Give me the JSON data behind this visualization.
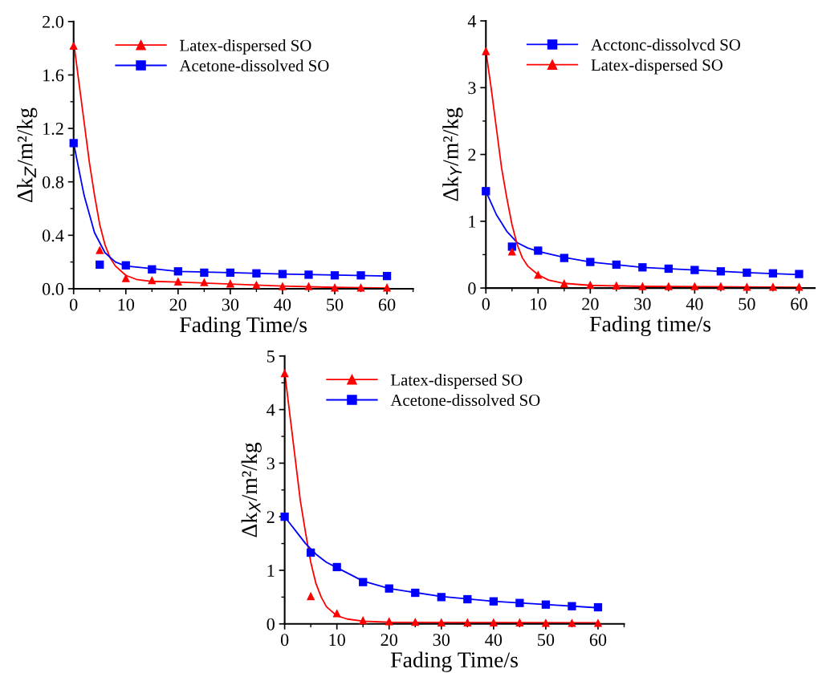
{
  "chart_data": [
    {
      "type": "scatter",
      "xlabel": "Fading Time/s",
      "ylabel": "Δk$_{Z}$/m²/kg",
      "xlim": [
        0,
        65
      ],
      "ylim": [
        0,
        2.0
      ],
      "xticks": [
        0,
        10,
        20,
        30,
        40,
        50,
        60
      ],
      "yticks": [
        {
          "value": 0,
          "label": "0.0"
        },
        0.4,
        0.8,
        1.2,
        1.6,
        {
          "value": 2,
          "label": "2.0"
        }
      ],
      "legend": "top left",
      "grid": false,
      "series": [
        {
          "name": "Latex-dispersed SO",
          "color": "#ff0000",
          "marker": "triangle",
          "x": [
            0,
            5,
            10,
            15,
            20,
            25,
            30,
            35,
            40,
            45,
            50,
            55,
            60
          ],
          "values": [
            1.82,
            0.29,
            0.08,
            0.065,
            0.055,
            0.05,
            0.04,
            0.03,
            0.02,
            0.02,
            0.01,
            0.01,
            0.01
          ]
        },
        {
          "name": "Acetone-dissolved SO",
          "color": "#0000ff",
          "marker": "square",
          "x": [
            0,
            5,
            10,
            15,
            20,
            25,
            30,
            35,
            40,
            45,
            50,
            55,
            60
          ],
          "values": [
            1.09,
            0.18,
            0.175,
            0.145,
            0.13,
            0.12,
            0.12,
            0.115,
            0.11,
            0.105,
            0.1,
            0.1,
            0.095
          ]
        },
        {
          "type": "line",
          "color": "#ff0000",
          "x": [
            0,
            1,
            2,
            3,
            4,
            5,
            6,
            7,
            8,
            10,
            12,
            15,
            20,
            30,
            40,
            50,
            60
          ],
          "values": [
            1.85,
            1.55,
            1.25,
            0.95,
            0.7,
            0.48,
            0.33,
            0.23,
            0.17,
            0.1,
            0.07,
            0.055,
            0.05,
            0.035,
            0.02,
            0.01,
            0.005
          ]
        },
        {
          "type": "line",
          "color": "#0000ff",
          "x": [
            0,
            2,
            4,
            6,
            8,
            10,
            15,
            20,
            30,
            40,
            60
          ],
          "values": [
            1.09,
            0.7,
            0.42,
            0.27,
            0.2,
            0.17,
            0.15,
            0.13,
            0.12,
            0.11,
            0.095
          ]
        }
      ]
    },
    {
      "type": "scatter",
      "xlabel": "Fading time/s",
      "ylabel": "Δk$_{Y}$/m²/kg",
      "xlim": [
        0,
        63
      ],
      "ylim": [
        0,
        4
      ],
      "xticks": [
        0,
        10,
        20,
        30,
        40,
        50,
        60
      ],
      "yticks": [
        0,
        1,
        2,
        3,
        4
      ],
      "legend": "top left",
      "grid": false,
      "series": [
        {
          "name": "Acctonc-dissolvcd SO",
          "color": "#0000ff",
          "marker": "square",
          "x": [
            0,
            5,
            10,
            15,
            20,
            25,
            30,
            35,
            40,
            45,
            50,
            55,
            60
          ],
          "values": [
            1.45,
            0.62,
            0.56,
            0.45,
            0.39,
            0.35,
            0.31,
            0.29,
            0.27,
            0.25,
            0.23,
            0.22,
            0.21
          ]
        },
        {
          "name": "Latex-dispersed SO",
          "color": "#ff0000",
          "marker": "triangle",
          "x": [
            0,
            5,
            10,
            15,
            20,
            25,
            30,
            35,
            40,
            45,
            50,
            55,
            60
          ],
          "values": [
            3.55,
            0.55,
            0.2,
            0.07,
            0.05,
            0.04,
            0.03,
            0.03,
            0.03,
            0.03,
            0.02,
            0.02,
            0.02
          ]
        },
        {
          "type": "line",
          "color": "#0000ff",
          "x": [
            0,
            2,
            4,
            6,
            8,
            10,
            15,
            20,
            30,
            40,
            50,
            60
          ],
          "values": [
            1.45,
            1.1,
            0.85,
            0.68,
            0.6,
            0.55,
            0.46,
            0.39,
            0.31,
            0.27,
            0.23,
            0.2
          ]
        },
        {
          "type": "line",
          "color": "#ff0000",
          "x": [
            0,
            1,
            2,
            3,
            4,
            5,
            6,
            7,
            8,
            10,
            12,
            15,
            20,
            30,
            60
          ],
          "values": [
            3.55,
            3.0,
            2.4,
            1.8,
            1.35,
            0.95,
            0.65,
            0.45,
            0.33,
            0.2,
            0.12,
            0.07,
            0.04,
            0.025,
            0.01
          ]
        }
      ]
    },
    {
      "type": "scatter",
      "xlabel": "Fading Time/s",
      "ylabel": "Δk$_{X}$/m²/kg",
      "xlim": [
        0,
        65
      ],
      "ylim": [
        0,
        5
      ],
      "xticks": [
        0,
        10,
        20,
        30,
        40,
        50,
        60
      ],
      "yticks": [
        0,
        1,
        2,
        3,
        4,
        5
      ],
      "legend": "top left",
      "grid": false,
      "series": [
        {
          "name": "Latex-dispersed SO",
          "color": "#ff0000",
          "marker": "triangle",
          "x": [
            0,
            5,
            10,
            15,
            20,
            25,
            30,
            35,
            40,
            45,
            50,
            55,
            60
          ],
          "values": [
            4.68,
            0.52,
            0.2,
            0.07,
            0.05,
            0.04,
            0.03,
            0.03,
            0.03,
            0.03,
            0.02,
            0.02,
            0.02
          ]
        },
        {
          "name": "Acetone-dissolved SO",
          "color": "#0000ff",
          "marker": "square",
          "x": [
            0,
            5,
            10,
            15,
            20,
            25,
            30,
            35,
            40,
            45,
            50,
            55,
            60
          ],
          "values": [
            2.0,
            1.33,
            1.06,
            0.78,
            0.66,
            0.58,
            0.5,
            0.46,
            0.42,
            0.39,
            0.36,
            0.33,
            0.31
          ]
        },
        {
          "type": "line",
          "color": "#ff0000",
          "x": [
            0,
            1,
            2,
            3,
            4,
            5,
            6,
            7,
            8,
            10,
            12,
            15,
            20,
            60
          ],
          "values": [
            4.7,
            3.9,
            3.1,
            2.3,
            1.7,
            1.15,
            0.75,
            0.5,
            0.32,
            0.15,
            0.09,
            0.05,
            0.03,
            0.02
          ]
        },
        {
          "type": "line",
          "color": "#0000ff",
          "x": [
            0,
            2,
            4,
            6,
            8,
            10,
            15,
            20,
            30,
            40,
            50,
            60
          ],
          "values": [
            2.0,
            1.75,
            1.5,
            1.3,
            1.15,
            1.05,
            0.8,
            0.66,
            0.51,
            0.42,
            0.36,
            0.3
          ]
        }
      ]
    }
  ]
}
